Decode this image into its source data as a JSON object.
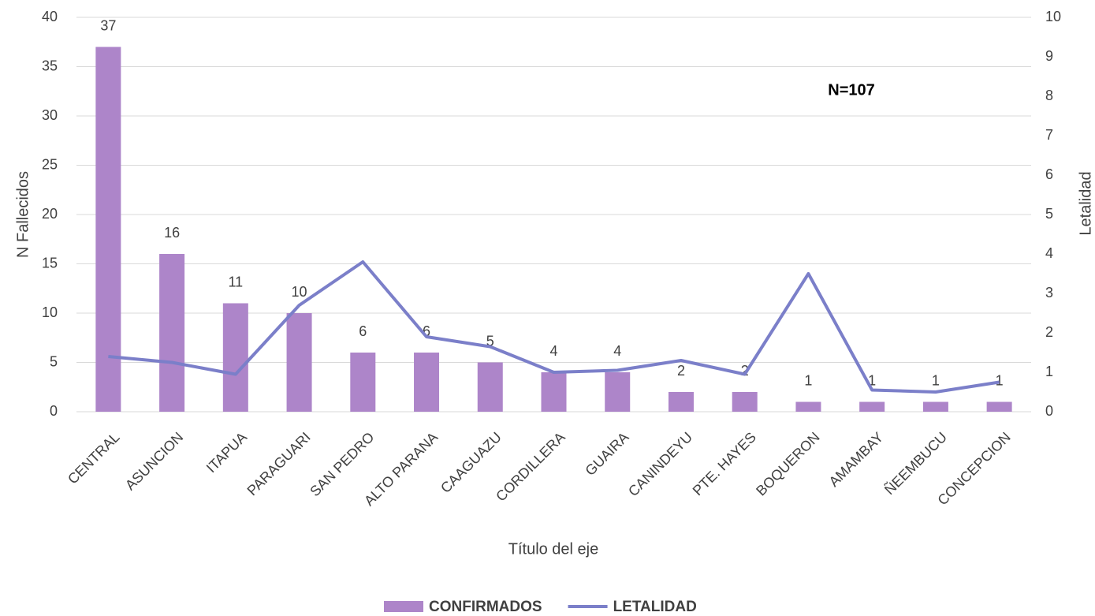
{
  "chart_data": {
    "type": "bar",
    "annotation": "N=107",
    "x_label": "Título del eje",
    "y_label": "N Fallecidos",
    "y2_label": "Letalidad",
    "categories": [
      "CENTRAL",
      "ASUNCION",
      "ITAPUA",
      "PARAGUARI",
      "SAN PEDRO",
      "ALTO PARANA",
      "CAAGUAZU",
      "CORDILLERA",
      "GUAIRA",
      "CANINDEYU",
      "PTE. HAYES",
      "BOQUERON",
      "AMAMBAY",
      "ÑEEMBUCU",
      "CONCEPCION"
    ],
    "series": [
      {
        "name": "CONFIRMADOS",
        "type": "bar",
        "color": "#ad85c9",
        "values": [
          37,
          16,
          11,
          10,
          6,
          6,
          5,
          4,
          4,
          2,
          2,
          1,
          1,
          1,
          1
        ]
      },
      {
        "name": "LETALIDAD",
        "type": "line",
        "axis": "y2",
        "color": "#7b7fc9",
        "values": [
          1.4,
          1.25,
          0.95,
          2.7,
          3.8,
          1.9,
          1.65,
          1.0,
          1.05,
          1.3,
          0.95,
          3.5,
          0.55,
          0.5,
          0.75
        ]
      }
    ],
    "ylim": [
      0,
      40
    ],
    "yticks": [
      0,
      5,
      10,
      15,
      20,
      25,
      30,
      35,
      40
    ],
    "y2lim": [
      0,
      10
    ],
    "y2ticks": [
      0,
      1,
      2,
      3,
      4,
      5,
      6,
      7,
      8,
      9,
      10
    ],
    "grid": true,
    "legend": "bottom"
  }
}
